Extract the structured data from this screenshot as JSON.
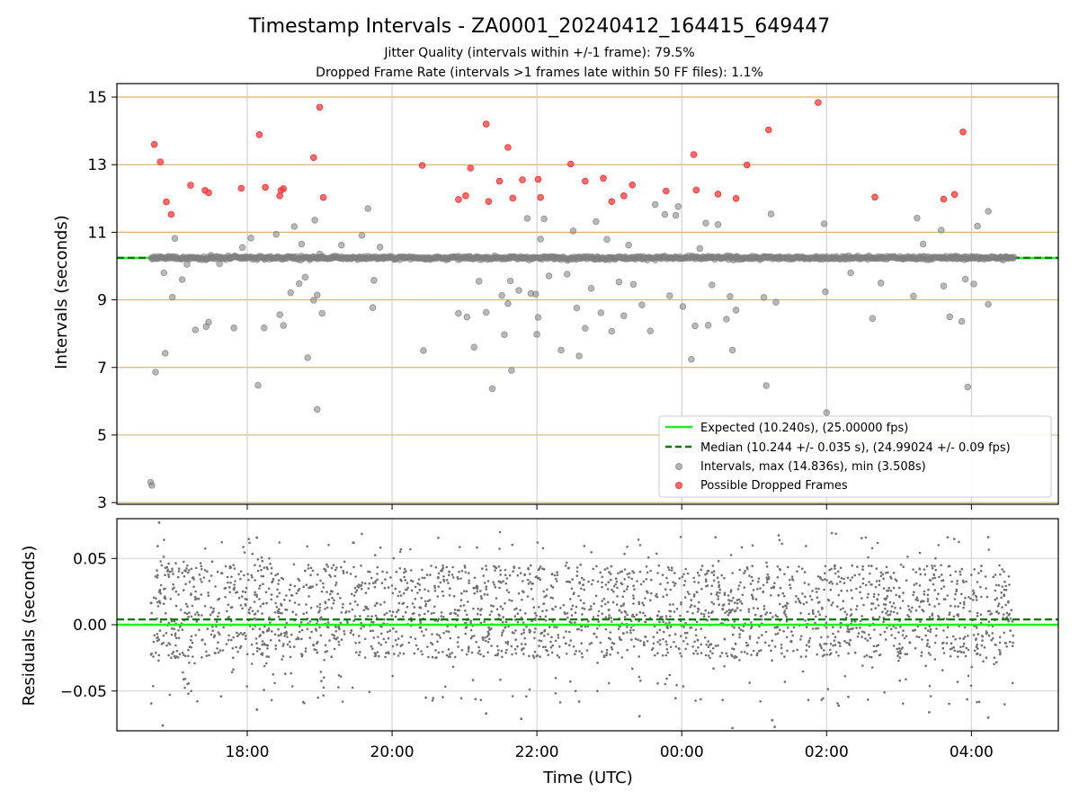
{
  "chart_data": [
    {
      "type": "scatter",
      "title": "Timestamp Intervals - ZA0001_20240412_164415_649447",
      "subtitle_lines": [
        "Jitter Quality (intervals within +/-1 frame): 79.5%",
        "Dropped Frame Rate (intervals >1 frames late within 50 FF files): 1.1%"
      ],
      "xlabel": "",
      "ylabel": "Intervals (seconds)",
      "ylim": [
        2.95,
        15.4
      ],
      "xlim": [
        "16:12",
        "05:12"
      ],
      "yticks": [
        3,
        5,
        7,
        9,
        11,
        13,
        15
      ],
      "grid": true,
      "grid_color": "#d4b572",
      "legend_position": "lower-right",
      "expected_value": 10.24,
      "median_value": 10.244,
      "series": [
        {
          "name": "Expected (10.240s), (25.00000 fps)",
          "kind": "hline",
          "color": "#22ee22",
          "value": 10.24
        },
        {
          "name": "Median (10.244 +/- 0.035 s), (24.99024 +/- 0.09 fps)",
          "kind": "hline-dashed",
          "color": "#007a00",
          "value": 10.244
        },
        {
          "name": "Intervals, max (14.836s), min (3.508s)",
          "kind": "scatter",
          "color": "#808080",
          "points": [
            [
              "16:40",
              3.6
            ],
            [
              "16:41",
              3.51
            ],
            [
              "16:44",
              6.86
            ],
            [
              "16:52",
              7.42
            ],
            [
              "16:58",
              9.08
            ],
            [
              "17:00",
              10.82
            ],
            [
              "16:51",
              9.8
            ],
            [
              "17:06",
              9.6
            ],
            [
              "17:10",
              10.05
            ],
            [
              "17:17",
              8.11
            ],
            [
              "17:26",
              8.21
            ],
            [
              "17:28",
              8.34
            ],
            [
              "17:30",
              10.32
            ],
            [
              "17:37",
              10.07
            ],
            [
              "17:49",
              8.17
            ],
            [
              "17:56",
              10.55
            ],
            [
              "18:03",
              10.83
            ],
            [
              "18:09",
              6.47
            ],
            [
              "18:14",
              8.17
            ],
            [
              "18:24",
              10.94
            ],
            [
              "18:27",
              8.56
            ],
            [
              "18:30",
              8.24
            ],
            [
              "18:34",
              10.28
            ],
            [
              "18:36",
              9.21
            ],
            [
              "18:39",
              11.17
            ],
            [
              "18:43",
              9.48
            ],
            [
              "18:45",
              10.65
            ],
            [
              "18:48",
              9.67
            ],
            [
              "18:50",
              7.29
            ],
            [
              "18:55",
              8.99
            ],
            [
              "18:56",
              11.36
            ],
            [
              "18:58",
              9.14
            ],
            [
              "19:00",
              10.36
            ],
            [
              "19:02",
              8.6
            ],
            [
              "18:58",
              5.76
            ],
            [
              "19:18",
              10.62
            ],
            [
              "19:35",
              10.91
            ],
            [
              "19:44",
              8.77
            ],
            [
              "19:40",
              11.7
            ],
            [
              "19:45",
              9.58
            ],
            [
              "19:50",
              10.56
            ],
            [
              "20:26",
              7.5
            ],
            [
              "20:55",
              8.6
            ],
            [
              "21:02",
              8.49
            ],
            [
              "21:08",
              7.6
            ],
            [
              "21:12",
              9.55
            ],
            [
              "21:18",
              8.63
            ],
            [
              "21:23",
              6.37
            ],
            [
              "21:31",
              9.13
            ],
            [
              "21:33",
              7.97
            ],
            [
              "21:36",
              8.89
            ],
            [
              "21:38",
              9.56
            ],
            [
              "21:39",
              6.91
            ],
            [
              "21:45",
              9.28
            ],
            [
              "21:52",
              11.41
            ],
            [
              "21:55",
              9.19
            ],
            [
              "21:59",
              9.17
            ],
            [
              "22:01",
              8.48
            ],
            [
              "22:00",
              7.98
            ],
            [
              "22:03",
              10.8
            ],
            [
              "22:06",
              11.4
            ],
            [
              "22:10",
              9.71
            ],
            [
              "22:15",
              10.27
            ],
            [
              "22:20",
              7.51
            ],
            [
              "22:25",
              9.76
            ],
            [
              "22:30",
              11.04
            ],
            [
              "22:33",
              8.76
            ],
            [
              "22:35",
              7.34
            ],
            [
              "22:40",
              8.16
            ],
            [
              "22:45",
              9.34
            ],
            [
              "22:49",
              11.32
            ],
            [
              "22:53",
              8.62
            ],
            [
              "22:58",
              10.79
            ],
            [
              "23:02",
              8.07
            ],
            [
              "23:08",
              9.53
            ],
            [
              "23:12",
              8.53
            ],
            [
              "23:16",
              10.62
            ],
            [
              "23:20",
              9.46
            ],
            [
              "23:27",
              8.85
            ],
            [
              "23:34",
              8.08
            ],
            [
              "23:38",
              11.82
            ],
            [
              "23:46",
              11.53
            ],
            [
              "23:50",
              9.12
            ],
            [
              "23:55",
              11.5
            ],
            [
              "23:57",
              11.76
            ],
            [
              "00:01",
              8.8
            ],
            [
              "00:08",
              7.24
            ],
            [
              "00:11",
              8.23
            ],
            [
              "00:15",
              10.52
            ],
            [
              "00:20",
              11.27
            ],
            [
              "00:22",
              8.25
            ],
            [
              "00:25",
              9.44
            ],
            [
              "00:30",
              11.23
            ],
            [
              "00:37",
              8.43
            ],
            [
              "00:40",
              9.1
            ],
            [
              "00:45",
              8.7
            ],
            [
              "00:42",
              7.51
            ],
            [
              "01:08",
              9.07
            ],
            [
              "01:10",
              6.46
            ],
            [
              "01:14",
              11.54
            ],
            [
              "01:18",
              8.93
            ],
            [
              "01:58",
              11.25
            ],
            [
              "01:59",
              9.24
            ],
            [
              "02:00",
              5.66
            ],
            [
              "02:20",
              9.8
            ],
            [
              "02:38",
              8.45
            ],
            [
              "02:45",
              9.5
            ],
            [
              "03:12",
              9.11
            ],
            [
              "03:15",
              11.42
            ],
            [
              "03:20",
              10.65
            ],
            [
              "03:35",
              11.06
            ],
            [
              "03:37",
              9.41
            ],
            [
              "03:42",
              8.5
            ],
            [
              "03:47",
              10.29
            ],
            [
              "03:52",
              8.36
            ],
            [
              "03:55",
              9.61
            ],
            [
              "03:57",
              6.42
            ],
            [
              "04:02",
              9.47
            ],
            [
              "04:05",
              11.18
            ],
            [
              "04:14",
              11.62
            ],
            [
              "04:14",
              8.87
            ]
          ]
        },
        {
          "name": "Possible Dropped Frames",
          "kind": "scatter",
          "color": "#ff3b3b",
          "points": [
            [
              "16:43",
              13.6
            ],
            [
              "16:48",
              13.08
            ],
            [
              "16:53",
              11.9
            ],
            [
              "16:57",
              11.53
            ],
            [
              "17:13",
              12.39
            ],
            [
              "17:25",
              12.24
            ],
            [
              "17:28",
              12.17
            ],
            [
              "17:55",
              12.3
            ],
            [
              "18:10",
              13.89
            ],
            [
              "18:15",
              12.33
            ],
            [
              "18:27",
              12.08
            ],
            [
              "18:28",
              12.24
            ],
            [
              "18:30",
              12.29
            ],
            [
              "18:55",
              13.21
            ],
            [
              "19:00",
              14.7
            ],
            [
              "19:03",
              12.03
            ],
            [
              "20:25",
              12.98
            ],
            [
              "20:55",
              11.97
            ],
            [
              "21:01",
              12.08
            ],
            [
              "21:05",
              12.9
            ],
            [
              "21:18",
              14.2
            ],
            [
              "21:20",
              11.91
            ],
            [
              "21:29",
              12.51
            ],
            [
              "21:36",
              13.51
            ],
            [
              "21:40",
              12.01
            ],
            [
              "21:48",
              12.55
            ],
            [
              "22:01",
              12.57
            ],
            [
              "22:03",
              12.03
            ],
            [
              "22:28",
              13.02
            ],
            [
              "22:40",
              12.51
            ],
            [
              "22:55",
              12.6
            ],
            [
              "23:02",
              11.91
            ],
            [
              "23:12",
              12.08
            ],
            [
              "23:19",
              12.4
            ],
            [
              "23:47",
              12.22
            ],
            [
              "24:10",
              13.3
            ],
            [
              "24:12",
              12.25
            ],
            [
              "24:30",
              12.13
            ],
            [
              "24:45",
              12.0
            ],
            [
              "24:54",
              12.99
            ],
            [
              "25:12",
              14.03
            ],
            [
              "25:53",
              14.84
            ],
            [
              "26:40",
              12.04
            ],
            [
              "27:37",
              11.98
            ],
            [
              "27:46",
              12.12
            ],
            [
              "27:53",
              13.97
            ]
          ]
        }
      ]
    },
    {
      "type": "scatter",
      "title": "",
      "xlabel": "Time (UTC)",
      "ylabel": "Residuals (seconds)",
      "ylim": [
        -0.08,
        0.08
      ],
      "xlim": [
        "16:12",
        "05:12"
      ],
      "yticks": [
        "0.05",
        "0.00",
        "−0.05"
      ],
      "xticks": [
        "18:00",
        "20:00",
        "22:00",
        "00:00",
        "02:00",
        "04:00"
      ],
      "grid": true,
      "grid_color": "#cfcfcf",
      "series": [
        {
          "name": "",
          "kind": "hline",
          "color": "#22ee22",
          "value": 0.0
        },
        {
          "name": "",
          "kind": "hline-dashed",
          "color": "#007a00",
          "value": 0.004
        },
        {
          "name": "",
          "kind": "scatter-cloud",
          "color": "#707070",
          "x_range": [
            "16:40",
            "04:35"
          ],
          "count": 2600,
          "dense_band": [
            -0.025,
            0.045
          ],
          "sparse_range": [
            -0.08,
            0.08
          ],
          "outliers": [
            [
              "16:47",
              0.077
            ],
            [
              "16:50",
              -0.076
            ],
            [
              "18:08",
              -0.064
            ],
            [
              "20:28",
              -0.055
            ],
            [
              "21:18",
              -0.067
            ],
            [
              "21:47",
              -0.071
            ],
            [
              "22:35",
              -0.058
            ],
            [
              "23:25",
              -0.069
            ],
            [
              "00:42",
              -0.078
            ],
            [
              "01:15",
              -0.072
            ],
            [
              "01:17",
              -0.077
            ],
            [
              "02:10",
              -0.061
            ],
            [
              "03:25",
              -0.066
            ],
            [
              "04:14",
              -0.07
            ],
            [
              "04:14",
              0.066
            ]
          ]
        }
      ]
    }
  ]
}
